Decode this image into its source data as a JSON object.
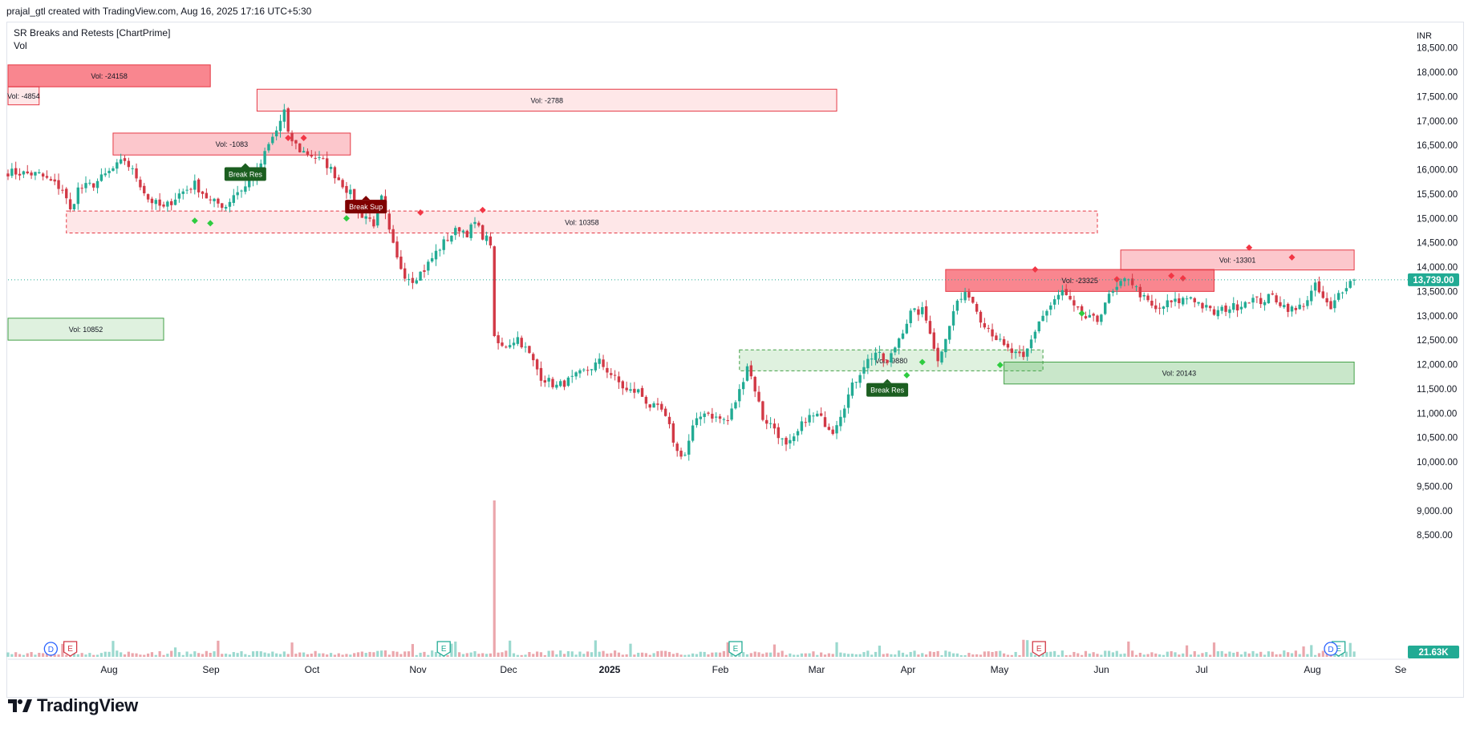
{
  "header": {
    "attribution": "prajal_gtl created with TradingView.com, Aug 16, 2025 17:16 UTC+5:30"
  },
  "indicators": {
    "primary": "SR Breaks and Retests [ChartPrime]",
    "volume": "Vol"
  },
  "footer": {
    "brand": "TradingView"
  },
  "colors": {
    "up": "#22ab94",
    "down": "#d23946",
    "resistance_fill": "#f7525f",
    "support_fill": "#4caf50",
    "label_green": "#1b5e20",
    "label_red": "#7f0000",
    "price_badge": "#22ab94",
    "volume_badge": "#22ab94"
  },
  "chart_data": {
    "type": "candlestick",
    "currency": "INR",
    "price_axis": {
      "unit_label": "INR",
      "ticks": [
        "18,500.00",
        "18,000.00",
        "17,500.00",
        "17,000.00",
        "16,500.00",
        "16,000.00",
        "15,500.00",
        "15,000.00",
        "14,500.00",
        "14,000.00",
        "13,500.00",
        "13,000.00",
        "12,500.00",
        "12,000.00",
        "11,500.00",
        "11,000.00",
        "10,500.00",
        "10,000.00",
        "9,500.00",
        "9,000.00",
        "8,500.00"
      ],
      "range": [
        8100,
        18800
      ]
    },
    "time_axis": {
      "labels": [
        "Aug",
        "Sep",
        "Oct",
        "Nov",
        "Dec",
        "2025",
        "Feb",
        "Mar",
        "Apr",
        "May",
        "Jun",
        "Jul",
        "Aug",
        "Se"
      ],
      "bold": [
        "2025"
      ]
    },
    "last_price": {
      "value": 13739,
      "label": "13,739.00"
    },
    "last_volume": {
      "label": "21.63K"
    },
    "price_path": [
      [
        0,
        15950
      ],
      [
        8,
        15900
      ],
      [
        14,
        15600
      ],
      [
        16,
        15150
      ],
      [
        18,
        15600
      ],
      [
        22,
        15700
      ],
      [
        26,
        15950
      ],
      [
        30,
        16200
      ],
      [
        33,
        15850
      ],
      [
        36,
        15400
      ],
      [
        40,
        15200
      ],
      [
        44,
        15500
      ],
      [
        48,
        15700
      ],
      [
        52,
        15350
      ],
      [
        56,
        15250
      ],
      [
        58,
        15500
      ],
      [
        61,
        15650
      ],
      [
        64,
        15950
      ],
      [
        67,
        16500
      ],
      [
        69,
        16800
      ],
      [
        71,
        17200
      ],
      [
        72,
        16700
      ],
      [
        75,
        16400
      ],
      [
        78,
        16300
      ],
      [
        82,
        16100
      ],
      [
        85,
        15800
      ],
      [
        88,
        15500
      ],
      [
        90,
        15100
      ],
      [
        92,
        15050
      ],
      [
        94,
        14900
      ],
      [
        96,
        15400
      ],
      [
        98,
        14700
      ],
      [
        100,
        14150
      ],
      [
        102,
        13850
      ],
      [
        104,
        13750
      ],
      [
        107,
        13950
      ],
      [
        110,
        14300
      ],
      [
        113,
        14600
      ],
      [
        116,
        14800
      ],
      [
        118,
        14700
      ],
      [
        120,
        14900
      ],
      [
        122,
        14650
      ],
      [
        124,
        14500
      ],
      [
        125,
        12500
      ],
      [
        127,
        12350
      ],
      [
        131,
        12550
      ],
      [
        134,
        12200
      ],
      [
        137,
        11750
      ],
      [
        141,
        11550
      ],
      [
        145,
        11700
      ],
      [
        149,
        11900
      ],
      [
        152,
        12050
      ],
      [
        155,
        11800
      ],
      [
        159,
        11450
      ],
      [
        162,
        11450
      ],
      [
        165,
        11150
      ],
      [
        168,
        11050
      ],
      [
        170,
        10700
      ],
      [
        172,
        10200
      ],
      [
        174,
        10150
      ],
      [
        176,
        10700
      ],
      [
        179,
        11050
      ],
      [
        182,
        10900
      ],
      [
        185,
        10850
      ],
      [
        188,
        11450
      ],
      [
        190,
        12000
      ],
      [
        192,
        11500
      ],
      [
        194,
        10900
      ],
      [
        197,
        10700
      ],
      [
        200,
        10300
      ],
      [
        202,
        10450
      ],
      [
        205,
        10900
      ],
      [
        208,
        10950
      ],
      [
        210,
        10800
      ],
      [
        212,
        10650
      ],
      [
        214,
        11000
      ],
      [
        217,
        11550
      ],
      [
        220,
        12000
      ],
      [
        223,
        12250
      ],
      [
        226,
        12000
      ],
      [
        229,
        12550
      ],
      [
        232,
        13050
      ],
      [
        235,
        13100
      ],
      [
        237,
        12700
      ],
      [
        239,
        12050
      ],
      [
        241,
        12600
      ],
      [
        244,
        13300
      ],
      [
        247,
        13450
      ],
      [
        250,
        12950
      ],
      [
        253,
        12650
      ],
      [
        256,
        12350
      ],
      [
        259,
        12200
      ],
      [
        261,
        12100
      ],
      [
        263,
        12500
      ],
      [
        265,
        12900
      ],
      [
        268,
        13200
      ],
      [
        271,
        13500
      ],
      [
        274,
        13150
      ],
      [
        277,
        12950
      ],
      [
        280,
        12900
      ],
      [
        282,
        13300
      ],
      [
        285,
        13550
      ],
      [
        288,
        13800
      ],
      [
        290,
        13550
      ],
      [
        292,
        13350
      ],
      [
        295,
        13100
      ],
      [
        298,
        13250
      ],
      [
        301,
        13300
      ],
      [
        304,
        13400
      ],
      [
        307,
        13200
      ],
      [
        310,
        13050
      ],
      [
        313,
        13150
      ],
      [
        316,
        13200
      ],
      [
        319,
        13350
      ],
      [
        322,
        13300
      ],
      [
        325,
        13400
      ],
      [
        328,
        13200
      ],
      [
        331,
        13100
      ],
      [
        334,
        13350
      ],
      [
        336,
        13600
      ],
      [
        338,
        13350
      ],
      [
        340,
        13100
      ],
      [
        342,
        13450
      ],
      [
        344,
        13650
      ],
      [
        346,
        13739
      ]
    ],
    "sr_zones": [
      {
        "label": "Vol: -24158",
        "top": 18150,
        "bottom": 17700,
        "x0": 0,
        "x1": 52,
        "kind": "resistance",
        "style": "solid"
      },
      {
        "label": "Vol: -4854",
        "top": 17700,
        "bottom": 17330,
        "x0": 0,
        "x1": 8,
        "kind": "resistance",
        "style": "light"
      },
      {
        "label": "Vol: -2788",
        "top": 17650,
        "bottom": 17200,
        "x0": 64,
        "x1": 213,
        "kind": "resistance",
        "style": "light"
      },
      {
        "label": "Vol: -1083",
        "top": 16750,
        "bottom": 16300,
        "x0": 27,
        "x1": 88,
        "kind": "resistance",
        "style": "medium"
      },
      {
        "label": "Vol: 10358",
        "top": 15150,
        "bottom": 14700,
        "x0": 15,
        "x1": 280,
        "kind": "resistance",
        "style": "dashed"
      },
      {
        "label": "Vol: 10852",
        "top": 12950,
        "bottom": 12500,
        "x0": 0,
        "x1": 40,
        "kind": "support",
        "style": "light"
      },
      {
        "label": "Vol: -9880",
        "top": 12300,
        "bottom": 11870,
        "x0": 188,
        "x1": 266,
        "kind": "support",
        "style": "dashed"
      },
      {
        "label": "Vol: -23325",
        "top": 13950,
        "bottom": 13500,
        "x0": 241,
        "x1": 310,
        "kind": "resistance",
        "style": "solid"
      },
      {
        "label": "Vol: -13301",
        "top": 14350,
        "bottom": 13940,
        "x0": 286,
        "x1": 346,
        "kind": "resistance",
        "style": "medium"
      },
      {
        "label": "Vol: 20143",
        "top": 12050,
        "bottom": 11600,
        "x0": 256,
        "x1": 346,
        "kind": "support",
        "style": "medium"
      }
    ],
    "event_labels": [
      {
        "text": "Break Res",
        "bar": 61,
        "price": 16050,
        "kind": "green"
      },
      {
        "text": "Break Sup",
        "bar": 92,
        "price": 15380,
        "kind": "red"
      },
      {
        "text": "Break Res",
        "bar": 226,
        "price": 11620,
        "kind": "green"
      }
    ],
    "event_markers": {
      "D": {
        "bar": 11,
        "color": "#2962ff"
      },
      "E": [
        {
          "bar": 16,
          "color": "#d23946"
        },
        {
          "bar": 112,
          "color": "#22ab94"
        },
        {
          "bar": 187,
          "color": "#22ab94"
        },
        {
          "bar": 265,
          "color": "#d23946"
        },
        {
          "bar": 342,
          "color": "#22ab94"
        }
      ],
      "D2": {
        "bar": 340,
        "color": "#2962ff"
      }
    },
    "volume_spike_bar": 125,
    "grid": false,
    "legend": "none"
  }
}
